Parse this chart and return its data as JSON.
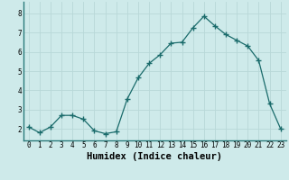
{
  "x": [
    0,
    1,
    2,
    3,
    4,
    5,
    6,
    7,
    8,
    9,
    10,
    11,
    12,
    13,
    14,
    15,
    16,
    17,
    18,
    19,
    20,
    21,
    22,
    23
  ],
  "y": [
    2.1,
    1.8,
    2.1,
    2.7,
    2.7,
    2.5,
    1.9,
    1.75,
    1.85,
    3.55,
    4.65,
    5.4,
    5.85,
    6.45,
    6.5,
    7.25,
    7.85,
    7.35,
    6.9,
    6.6,
    6.3,
    5.55,
    3.3,
    2.0
  ],
  "line_color": "#1a6b6b",
  "marker": "+",
  "marker_size": 4,
  "bg_color": "#ceeaea",
  "grid_color": "#b8d8d8",
  "xlabel": "Humidex (Indice chaleur)",
  "ylim": [
    1.4,
    8.6
  ],
  "xlim": [
    -0.5,
    23.5
  ],
  "yticks": [
    2,
    3,
    4,
    5,
    6,
    7,
    8
  ],
  "xticks": [
    0,
    1,
    2,
    3,
    4,
    5,
    6,
    7,
    8,
    9,
    10,
    11,
    12,
    13,
    14,
    15,
    16,
    17,
    18,
    19,
    20,
    21,
    22,
    23
  ],
  "tick_fontsize": 5.5,
  "xlabel_fontsize": 7.5
}
